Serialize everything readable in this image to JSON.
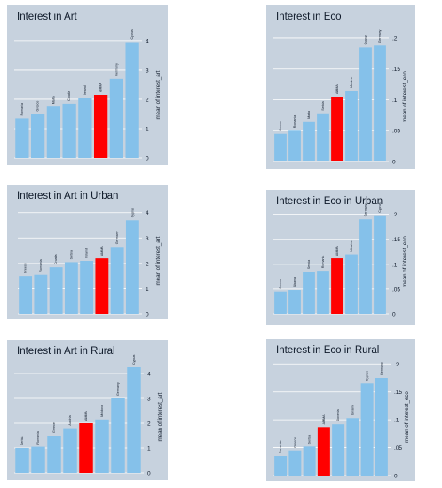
{
  "colors": {
    "background": "#c7d2de",
    "bar": "#85c1ea",
    "highlight": "#ff0000",
    "grid": "#ffffff",
    "text": "#0f1a2a"
  },
  "chart_data": [
    {
      "type": "bar",
      "title": "Interest in Art",
      "ylabel": "mean of interest_art",
      "ylim": [
        0,
        4.3
      ],
      "yticks": [
        "0",
        "1",
        "2",
        "3",
        "4"
      ],
      "grid": true,
      "orientation_of_axis": "right",
      "categories": [
        "Romania",
        "Greece",
        "Malta",
        "Croatia",
        "Ireland",
        "AMMA",
        "Germany",
        "Cyprus"
      ],
      "values": [
        1.35,
        1.5,
        1.75,
        1.85,
        2.05,
        2.15,
        2.7,
        3.95
      ],
      "highlight": "AMMA"
    },
    {
      "type": "bar",
      "title": "Interest in Eco",
      "ylabel": "mean of interest_eco",
      "ylim": [
        0,
        0.21
      ],
      "yticks": [
        "0",
        ".05",
        ".1",
        ".15",
        ".2"
      ],
      "grid": true,
      "orientation_of_axis": "right",
      "categories": [
        "Greece",
        "Romania",
        "Malta",
        "Serbia",
        "AMMA",
        "Ukraine",
        "Cyprus",
        "Germany"
      ],
      "values": [
        0.045,
        0.05,
        0.065,
        0.078,
        0.105,
        0.115,
        0.185,
        0.188
      ],
      "highlight": "AMMA"
    },
    {
      "type": "bar",
      "title": "Interest in Art in Urban",
      "ylabel": "mean of interest_art",
      "ylim": [
        0,
        4.2
      ],
      "yticks": [
        "0",
        "1",
        "2",
        "3",
        "4"
      ],
      "grid": true,
      "orientation_of_axis": "right",
      "categories": [
        "Greece",
        "Romania",
        "Croatia",
        "Serbia",
        "Ireland",
        "AMMA",
        "Germany",
        "Cyprus"
      ],
      "values": [
        1.5,
        1.55,
        1.85,
        2.05,
        2.1,
        2.2,
        2.65,
        3.7
      ],
      "highlight": "AMMA"
    },
    {
      "type": "bar",
      "title": "Interest in Eco in Urban",
      "ylabel": "mean of interest_eco",
      "ylim": [
        0,
        0.21
      ],
      "yticks": [
        "0",
        ".05",
        ".1",
        ".15",
        ".2"
      ],
      "grid": true,
      "orientation_of_axis": "right",
      "categories": [
        "Greece",
        "Albania",
        "Serbia",
        "Romania",
        "AMMA",
        "Ukraine",
        "Germany",
        "Cyprus"
      ],
      "values": [
        0.045,
        0.048,
        0.085,
        0.087,
        0.112,
        0.12,
        0.19,
        0.198
      ],
      "highlight": "AMMA"
    },
    {
      "type": "bar",
      "title": "Interest in Art in Rural",
      "ylabel": "mean of interest_art",
      "ylim": [
        0,
        4.5
      ],
      "yticks": [
        "0",
        "1",
        "2",
        "3",
        "4"
      ],
      "grid": true,
      "orientation_of_axis": "right",
      "categories": [
        "Serbia",
        "Romania",
        "Greece",
        "Austria",
        "AMMA",
        "Moldova",
        "Germany",
        "Cyprus"
      ],
      "values": [
        1.0,
        1.05,
        1.5,
        1.8,
        2.0,
        2.15,
        3.0,
        4.25
      ],
      "highlight": "AMMA"
    },
    {
      "type": "bar",
      "title": "Interest in Eco in Rural",
      "ylabel": "mean of interest_eco",
      "ylim": [
        0,
        0.21
      ],
      "yticks": [
        "0",
        ".05",
        ".1",
        ".15",
        ".2"
      ],
      "grid": true,
      "orientation_of_axis": "right",
      "categories": [
        "Romania",
        "Greece",
        "Serbia",
        "AMMA",
        "Slovenia",
        "Ukraine",
        "Cyprus",
        "Germany"
      ],
      "values": [
        0.035,
        0.045,
        0.052,
        0.087,
        0.092,
        0.103,
        0.165,
        0.175
      ],
      "highlight": "AMMA"
    }
  ]
}
